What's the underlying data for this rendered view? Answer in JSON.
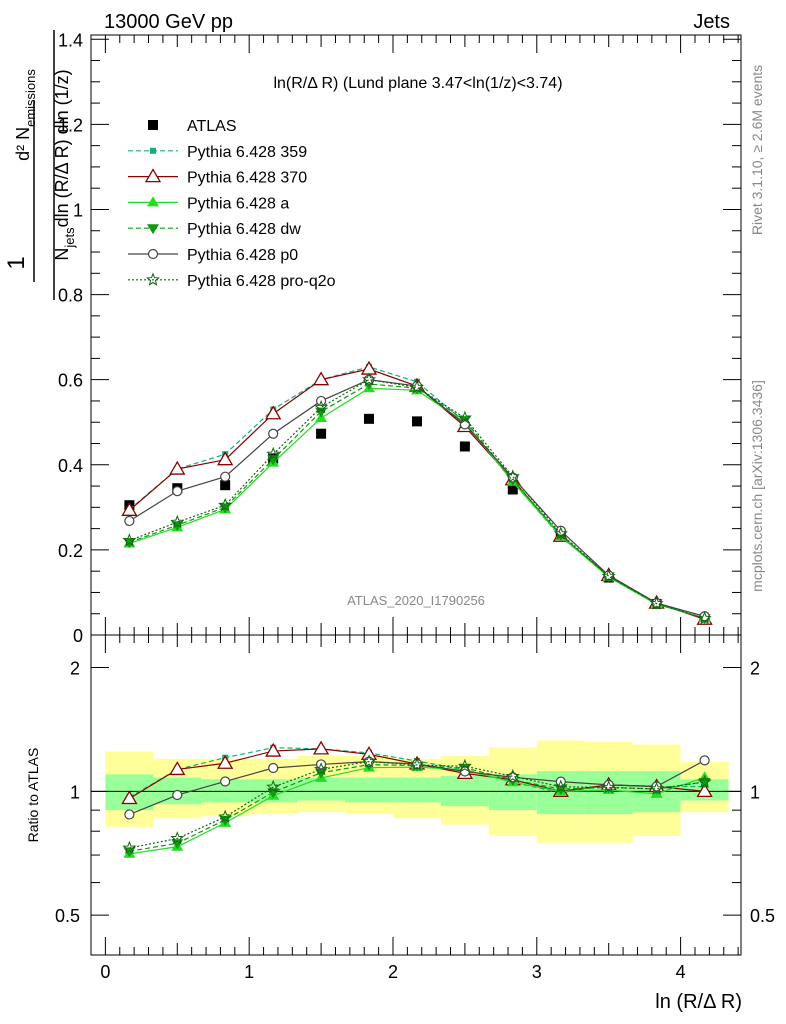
{
  "header": {
    "left": "13000 GeV pp",
    "right": "Jets"
  },
  "side_labels": {
    "rivet": "Rivet 3.1.10, ≥ 2.6M events",
    "mcplots": "mcplots.cern.ch [arXiv:1306.3436]"
  },
  "plot_title": "ln(R/Δ R) (Lund plane 3.47<ln(1/z)<3.74)",
  "watermark": "ATLAS_2020_I1790256",
  "xlabel": "ln (R/Δ R)",
  "ylabel": {
    "num": "d² N_emissions",
    "den": "N_jets dln (R/Δ R) dln (1/z)"
  },
  "ratio_ylabel": "Ratio to ATLAS",
  "chart_data": {
    "type": "scatter",
    "xlim": [
      -0.1,
      4.42
    ],
    "ylim": [
      0,
      1.41
    ],
    "ratio_ylim": [
      0.4,
      2.4
    ],
    "ratio_scale": "log",
    "x": [
      0.167,
      0.5,
      0.833,
      1.167,
      1.5,
      1.833,
      2.167,
      2.5,
      2.833,
      3.167,
      3.5,
      3.833,
      4.167
    ],
    "xticks": [
      "0",
      "1",
      "2",
      "3",
      "4"
    ],
    "yticks": [
      "0",
      "0.2",
      "0.4",
      "0.6",
      "0.8",
      "1",
      "1.2",
      "1.4"
    ],
    "ratio_yticks": [
      "0.5",
      "1",
      "2"
    ],
    "legend_position": "top-left",
    "series": [
      {
        "name": "ATLAS",
        "color": "#000000",
        "values": [
          0.305,
          0.345,
          0.352,
          0.415,
          0.473,
          0.508,
          0.502,
          0.443,
          0.342,
          0.232,
          0.135,
          0.073,
          0.037
        ]
      },
      {
        "name": "Pythia 6.428 359",
        "color": "#10b07a",
        "values": [
          0.295,
          0.39,
          0.425,
          0.53,
          0.6,
          0.63,
          0.595,
          0.5,
          0.36,
          0.23,
          0.14,
          0.075,
          0.038
        ]
      },
      {
        "name": "Pythia 6.428 370",
        "color": "#8b0000",
        "values": [
          0.293,
          0.39,
          0.412,
          0.52,
          0.6,
          0.625,
          0.585,
          0.49,
          0.365,
          0.232,
          0.14,
          0.075,
          0.037
        ]
      },
      {
        "name": "Pythia 6.428 a",
        "color": "#22dd22",
        "values": [
          0.215,
          0.253,
          0.295,
          0.405,
          0.51,
          0.58,
          0.575,
          0.5,
          0.36,
          0.232,
          0.136,
          0.072,
          0.04
        ]
      },
      {
        "name": "Pythia 6.428 dw",
        "color": "#119911",
        "values": [
          0.218,
          0.258,
          0.3,
          0.413,
          0.525,
          0.59,
          0.58,
          0.505,
          0.365,
          0.235,
          0.138,
          0.074,
          0.039
        ]
      },
      {
        "name": "Pythia 6.428 p0",
        "color": "#444444",
        "values": [
          0.268,
          0.338,
          0.372,
          0.473,
          0.55,
          0.6,
          0.585,
          0.495,
          0.37,
          0.245,
          0.14,
          0.075,
          0.044
        ]
      },
      {
        "name": "Pythia 6.428 pro-q2o",
        "color": "#116611",
        "values": [
          0.222,
          0.265,
          0.305,
          0.425,
          0.535,
          0.6,
          0.582,
          0.51,
          0.372,
          0.238,
          0.138,
          0.074,
          0.039
        ]
      }
    ],
    "ratio_bands": {
      "yellow_lo": [
        0.82,
        0.86,
        0.87,
        0.88,
        0.89,
        0.88,
        0.86,
        0.83,
        0.78,
        0.75,
        0.75,
        0.78,
        0.89
      ],
      "yellow_hi": [
        1.25,
        1.2,
        1.2,
        1.2,
        1.22,
        1.22,
        1.2,
        1.22,
        1.28,
        1.33,
        1.32,
        1.3,
        1.18
      ],
      "green_lo": [
        0.9,
        0.93,
        0.94,
        0.94,
        0.95,
        0.94,
        0.94,
        0.92,
        0.9,
        0.88,
        0.88,
        0.89,
        0.95
      ],
      "green_hi": [
        1.1,
        1.08,
        1.07,
        1.07,
        1.08,
        1.08,
        1.08,
        1.09,
        1.1,
        1.12,
        1.12,
        1.12,
        1.07
      ]
    }
  }
}
